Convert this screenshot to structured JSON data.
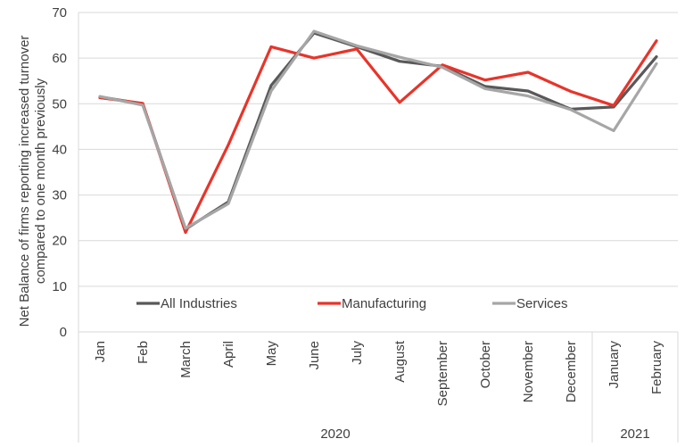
{
  "chart_data": {
    "type": "line",
    "ylabel_lines": [
      "Net Balance of firms reporting increased turnover",
      "compared to one month previously"
    ],
    "ylim": [
      0,
      70
    ],
    "yticks": [
      0,
      10,
      20,
      30,
      40,
      50,
      60,
      70
    ],
    "categories": [
      "Jan",
      "Feb",
      "March",
      "April",
      "May",
      "June",
      "July",
      "August",
      "September",
      "October",
      "November",
      "December",
      "January",
      "February"
    ],
    "groups": [
      {
        "label": "2020",
        "count": 12
      },
      {
        "label": "2021",
        "count": 2
      }
    ],
    "grid": true,
    "legend_position": "bottom-inside",
    "series": [
      {
        "name": "All Industries",
        "color": "#595959",
        "values": [
          51.5,
          50.0,
          22.5,
          28.5,
          54.0,
          65.5,
          62.5,
          59.3,
          58.2,
          53.8,
          52.8,
          48.8,
          49.3,
          60.3
        ]
      },
      {
        "name": "Manufacturing",
        "color": "#e8342a",
        "values": [
          51.3,
          50.1,
          21.8,
          41.0,
          62.5,
          60.0,
          62.0,
          50.3,
          58.5,
          55.2,
          56.9,
          52.7,
          49.6,
          63.8
        ]
      },
      {
        "name": "Services",
        "color": "#a6a6a6",
        "values": [
          51.6,
          49.7,
          22.7,
          28.1,
          52.8,
          65.9,
          62.7,
          60.2,
          58.0,
          53.3,
          51.7,
          48.7,
          44.1,
          58.8
        ]
      }
    ]
  }
}
